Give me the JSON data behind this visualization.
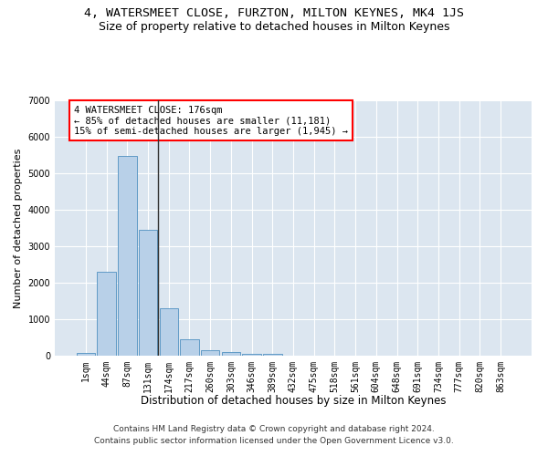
{
  "title": "4, WATERSMEET CLOSE, FURZTON, MILTON KEYNES, MK4 1JS",
  "subtitle": "Size of property relative to detached houses in Milton Keynes",
  "xlabel": "Distribution of detached houses by size in Milton Keynes",
  "ylabel": "Number of detached properties",
  "bar_color": "#b8d0e8",
  "bar_edge_color": "#5090c0",
  "vline_color": "#333333",
  "vline_x_index": 3.5,
  "annotation_text": "4 WATERSMEET CLOSE: 176sqm\n← 85% of detached houses are smaller (11,181)\n15% of semi-detached houses are larger (1,945) →",
  "annotation_box_color": "white",
  "annotation_box_edge": "red",
  "categories": [
    "1sqm",
    "44sqm",
    "87sqm",
    "131sqm",
    "174sqm",
    "217sqm",
    "260sqm",
    "303sqm",
    "346sqm",
    "389sqm",
    "432sqm",
    "475sqm",
    "518sqm",
    "561sqm",
    "604sqm",
    "648sqm",
    "691sqm",
    "734sqm",
    "777sqm",
    "820sqm",
    "863sqm"
  ],
  "values": [
    80,
    2290,
    5480,
    3450,
    1310,
    460,
    160,
    90,
    55,
    40,
    0,
    0,
    0,
    0,
    0,
    0,
    0,
    0,
    0,
    0,
    0
  ],
  "ylim": [
    0,
    7000
  ],
  "yticks": [
    0,
    1000,
    2000,
    3000,
    4000,
    5000,
    6000,
    7000
  ],
  "background_color": "#dce6f0",
  "grid_color": "#ffffff",
  "footer": "Contains HM Land Registry data © Crown copyright and database right 2024.\nContains public sector information licensed under the Open Government Licence v3.0.",
  "title_fontsize": 9.5,
  "subtitle_fontsize": 9,
  "xlabel_fontsize": 8.5,
  "ylabel_fontsize": 8,
  "tick_fontsize": 7,
  "footer_fontsize": 6.5,
  "annotation_fontsize": 7.5
}
